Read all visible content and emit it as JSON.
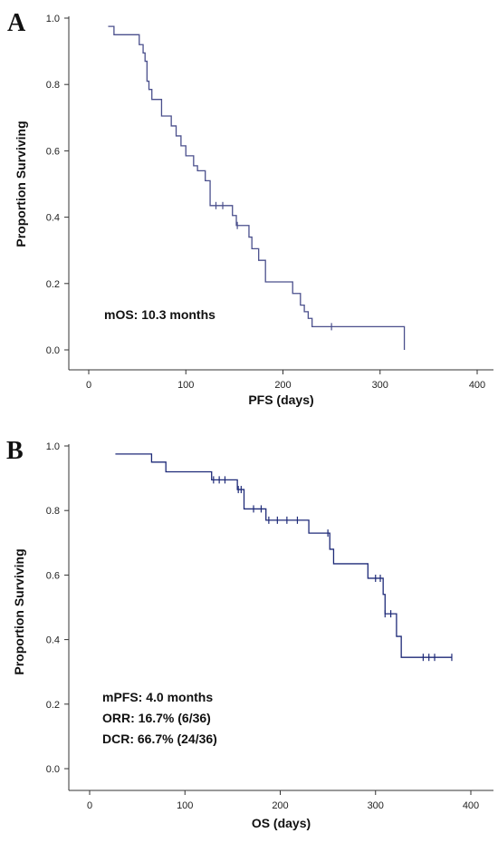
{
  "chart_data": [
    {
      "type": "line",
      "subtype": "kaplan-meier",
      "panel_label": "A",
      "xlabel": "PFS (days)",
      "ylabel": "Proportion Surviving",
      "xlim": [
        0,
        400
      ],
      "ylim": [
        0,
        1.0
      ],
      "xticks": [
        "0",
        "100",
        "200",
        "300",
        "400"
      ],
      "yticks": [
        "0.0",
        "0.2",
        "0.4",
        "0.6",
        "0.8",
        "1.0"
      ],
      "annotations": [
        "mOS: 10.3 months"
      ],
      "line_color": "#4a4f8c",
      "grid": false,
      "series": [
        {
          "step_x": [
            20,
            26,
            52,
            56,
            58,
            60,
            62,
            65,
            75,
            85,
            90,
            95,
            100,
            108,
            112,
            120,
            125,
            148,
            152,
            165,
            168,
            175,
            182,
            210,
            218,
            222,
            226,
            230,
            234,
            325
          ],
          "step_y": [
            0.975,
            0.95,
            0.92,
            0.895,
            0.87,
            0.81,
            0.785,
            0.755,
            0.705,
            0.675,
            0.645,
            0.615,
            0.585,
            0.555,
            0.54,
            0.51,
            0.435,
            0.405,
            0.375,
            0.34,
            0.305,
            0.27,
            0.205,
            0.17,
            0.135,
            0.115,
            0.095,
            0.07,
            0.07,
            0.0
          ],
          "censored_x": [
            131,
            138,
            153,
            250
          ],
          "censored_y": [
            0.435,
            0.435,
            0.375,
            0.07
          ]
        }
      ]
    },
    {
      "type": "line",
      "subtype": "kaplan-meier",
      "panel_label": "B",
      "xlabel": "OS (days)",
      "ylabel": "Proportion Surviving",
      "xlim": [
        0,
        400
      ],
      "ylim": [
        0,
        1.0
      ],
      "xticks": [
        "0",
        "100",
        "200",
        "300",
        "400"
      ],
      "yticks": [
        "0.0",
        "0.2",
        "0.4",
        "0.6",
        "0.8",
        "1.0"
      ],
      "annotations": [
        "mPFS: 4.0 months",
        "ORR: 16.7% (6/36)",
        "DCR: 66.7% (24/36)"
      ],
      "line_color": "#1e2a78",
      "grid": false,
      "series": [
        {
          "step_x": [
            27,
            65,
            80,
            128,
            155,
            162,
            180,
            185,
            230,
            252,
            256,
            292,
            305,
            308,
            310,
            322,
            327,
            380
          ],
          "step_y": [
            0.975,
            0.95,
            0.92,
            0.895,
            0.865,
            0.805,
            0.805,
            0.77,
            0.73,
            0.68,
            0.635,
            0.59,
            0.59,
            0.54,
            0.48,
            0.41,
            0.345,
            0.345
          ],
          "censored_x": [
            130,
            136,
            142,
            156,
            159,
            172,
            180,
            188,
            197,
            207,
            218,
            250,
            300,
            305,
            310,
            316,
            350,
            356,
            362,
            380
          ],
          "censored_y": [
            0.895,
            0.895,
            0.895,
            0.865,
            0.865,
            0.805,
            0.805,
            0.77,
            0.77,
            0.77,
            0.77,
            0.73,
            0.59,
            0.59,
            0.48,
            0.48,
            0.345,
            0.345,
            0.345,
            0.345
          ]
        }
      ]
    }
  ]
}
